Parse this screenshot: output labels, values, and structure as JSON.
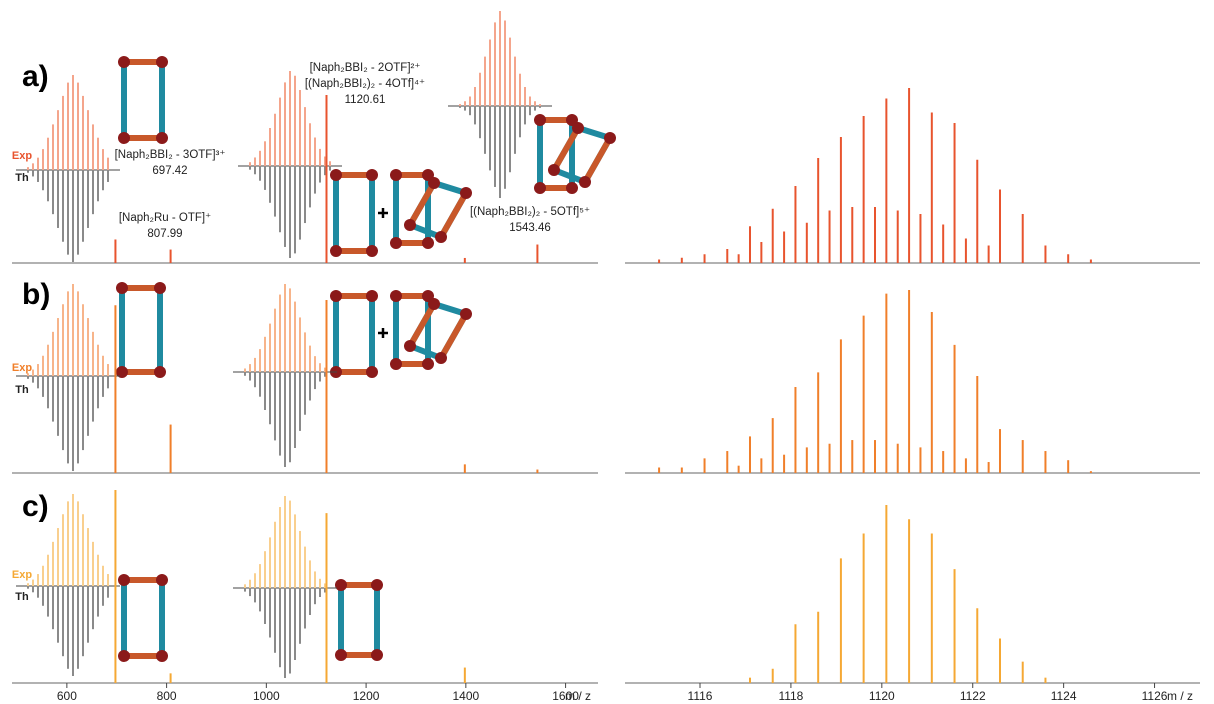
{
  "chart_data": [
    {
      "type": "stick",
      "title": "a)",
      "color": "#e8542e",
      "inset_color": "#f4a58c",
      "th_color": "#8a8a8a",
      "series_labels": [
        "Exp",
        "Th"
      ],
      "xlim": [
        490,
        1665
      ],
      "x": [
        697.4,
        808,
        1120.6,
        1398,
        1543.5
      ],
      "values": [
        14,
        8,
        100,
        3,
        11
      ],
      "annotations": [
        {
          "lines": [
            "[Naph₂BBI₂ - 3OTF]³⁺"
          ],
          "value": 697.42
        },
        {
          "lines": [
            "[Naph₂Ru - OTF]⁺"
          ],
          "value": 807.99
        },
        {
          "lines": [
            "[Naph₂BBI₂ - 2OTF]²⁺",
            "[(Naph₂BBI₂)₂ - 4OTf]⁴⁺"
          ],
          "value": 1120.61
        },
        {
          "lines": [
            "[(Naph₂BBI₂)₂ - 5OTf]⁵⁺"
          ],
          "value": 1543.46
        }
      ],
      "insets": [
        {
          "exp": [
            3,
            7,
            13,
            22,
            34,
            48,
            63,
            78,
            92,
            100,
            92,
            78,
            63,
            48,
            34,
            22,
            13
          ],
          "th": [
            3,
            7,
            13,
            22,
            34,
            48,
            63,
            78,
            92,
            100,
            92,
            78,
            63,
            48,
            34,
            22,
            13
          ]
        },
        {
          "exp": [
            4,
            9,
            16,
            26,
            40,
            55,
            72,
            88,
            100,
            95,
            80,
            62,
            45,
            30,
            18,
            10,
            5
          ],
          "th": [
            4,
            9,
            16,
            26,
            40,
            55,
            72,
            88,
            100,
            95,
            80,
            62,
            45,
            30,
            18,
            10,
            5
          ]
        },
        {
          "exp": [
            2,
            5,
            10,
            20,
            35,
            52,
            70,
            88,
            100,
            90,
            72,
            52,
            34,
            20,
            10,
            5,
            2
          ],
          "th": [
            2,
            5,
            10,
            20,
            35,
            52,
            70,
            88,
            100,
            90,
            72,
            52,
            34,
            20,
            10,
            5,
            2
          ]
        }
      ]
    },
    {
      "type": "stick",
      "title": "b)",
      "color": "#f07f2a",
      "inset_color": "#f7b48a",
      "th_color": "#8a8a8a",
      "series_labels": [
        "Exp",
        "Th"
      ],
      "xlim": [
        490,
        1665
      ],
      "x": [
        697.4,
        808,
        1120.6,
        1398,
        1543.5
      ],
      "values": [
        97,
        28,
        100,
        5,
        2
      ],
      "insets": [
        {
          "exp": [
            3,
            7,
            13,
            22,
            34,
            48,
            63,
            78,
            92,
            100,
            92,
            78,
            63,
            48,
            34,
            22,
            13
          ],
          "th": [
            3,
            7,
            13,
            22,
            34,
            48,
            63,
            78,
            92,
            100,
            92,
            78,
            63,
            48,
            34,
            22,
            13
          ]
        },
        {
          "exp": [
            4,
            9,
            16,
            26,
            40,
            55,
            72,
            88,
            100,
            95,
            80,
            62,
            45,
            30,
            18,
            10,
            5
          ],
          "th": [
            4,
            9,
            16,
            26,
            40,
            55,
            72,
            88,
            100,
            95,
            80,
            62,
            45,
            30,
            18,
            10,
            5
          ]
        }
      ]
    },
    {
      "type": "stick",
      "title": "c)",
      "color": "#f5a834",
      "inset_color": "#f9cf8e",
      "th_color": "#8a8a8a",
      "series_labels": [
        "Exp",
        "Th"
      ],
      "xlim": [
        490,
        1665
      ],
      "xticks": [
        600,
        800,
        1000,
        1200,
        1400,
        1600
      ],
      "xlabel": "m / z",
      "x": [
        697.4,
        808,
        1120.6,
        1398
      ],
      "values": [
        100,
        5,
        88,
        8
      ],
      "insets": [
        {
          "exp": [
            3,
            7,
            13,
            22,
            34,
            48,
            63,
            78,
            92,
            100,
            92,
            78,
            63,
            48,
            34,
            22,
            13
          ],
          "th": [
            3,
            7,
            13,
            22,
            34,
            48,
            63,
            78,
            92,
            100,
            92,
            78,
            63,
            48,
            34,
            22,
            13
          ]
        },
        {
          "exp": [
            4,
            9,
            16,
            26,
            40,
            55,
            72,
            88,
            100,
            95,
            80,
            62,
            45,
            30,
            18,
            10,
            5
          ],
          "th": [
            4,
            9,
            16,
            26,
            40,
            55,
            72,
            88,
            100,
            95,
            80,
            62,
            45,
            30,
            18,
            10,
            5
          ]
        }
      ]
    },
    {
      "type": "stick",
      "color": "#e8542e",
      "xlim": [
        1114.35,
        1127
      ],
      "x": [
        1115.1,
        1115.6,
        1116.1,
        1116.6,
        1117.1,
        1117.6,
        1118.1,
        1118.6,
        1119.1,
        1119.6,
        1120.1,
        1120.6,
        1121.1,
        1121.6,
        1122.1,
        1122.6,
        1123.1,
        1123.6,
        1124.1,
        1124.6,
        1116.85,
        1117.35,
        1117.85,
        1118.35,
        1118.85,
        1119.35,
        1119.85,
        1120.35,
        1120.85,
        1121.35,
        1121.85,
        1122.35
      ],
      "values": [
        2,
        3,
        5,
        8,
        21,
        31,
        44,
        60,
        72,
        84,
        94,
        100,
        86,
        80,
        59,
        42,
        28,
        10,
        5,
        2,
        5,
        12,
        18,
        23,
        30,
        32,
        32,
        30,
        28,
        22,
        14,
        10
      ]
    },
    {
      "type": "stick",
      "color": "#f07f2a",
      "xlim": [
        1114.35,
        1127
      ],
      "x": [
        1115.1,
        1115.6,
        1116.1,
        1116.6,
        1117.1,
        1117.6,
        1118.1,
        1118.6,
        1119.1,
        1119.6,
        1120.1,
        1120.6,
        1121.1,
        1121.6,
        1122.1,
        1122.6,
        1123.1,
        1123.6,
        1124.1,
        1124.6,
        1116.85,
        1117.35,
        1117.85,
        1118.35,
        1118.85,
        1119.35,
        1119.85,
        1120.35,
        1120.85,
        1121.35,
        1121.85,
        1122.35
      ],
      "values": [
        3,
        3,
        8,
        12,
        20,
        30,
        47,
        55,
        73,
        86,
        98,
        100,
        88,
        70,
        53,
        24,
        18,
        12,
        7,
        1,
        4,
        8,
        10,
        14,
        16,
        18,
        18,
        16,
        14,
        12,
        8,
        6
      ]
    },
    {
      "type": "stick",
      "color": "#f5a834",
      "xlim": [
        1114.35,
        1127
      ],
      "xticks": [
        1116,
        1118,
        1120,
        1122,
        1124,
        1126
      ],
      "xlabel": "m / z",
      "x": [
        1117.1,
        1117.6,
        1118.1,
        1118.6,
        1119.1,
        1119.6,
        1120.1,
        1120.6,
        1121.1,
        1121.6,
        1122.1,
        1122.6,
        1123.1,
        1123.6
      ],
      "values": [
        3,
        8,
        33,
        40,
        70,
        84,
        100,
        92,
        84,
        64,
        42,
        25,
        12,
        3
      ]
    }
  ]
}
